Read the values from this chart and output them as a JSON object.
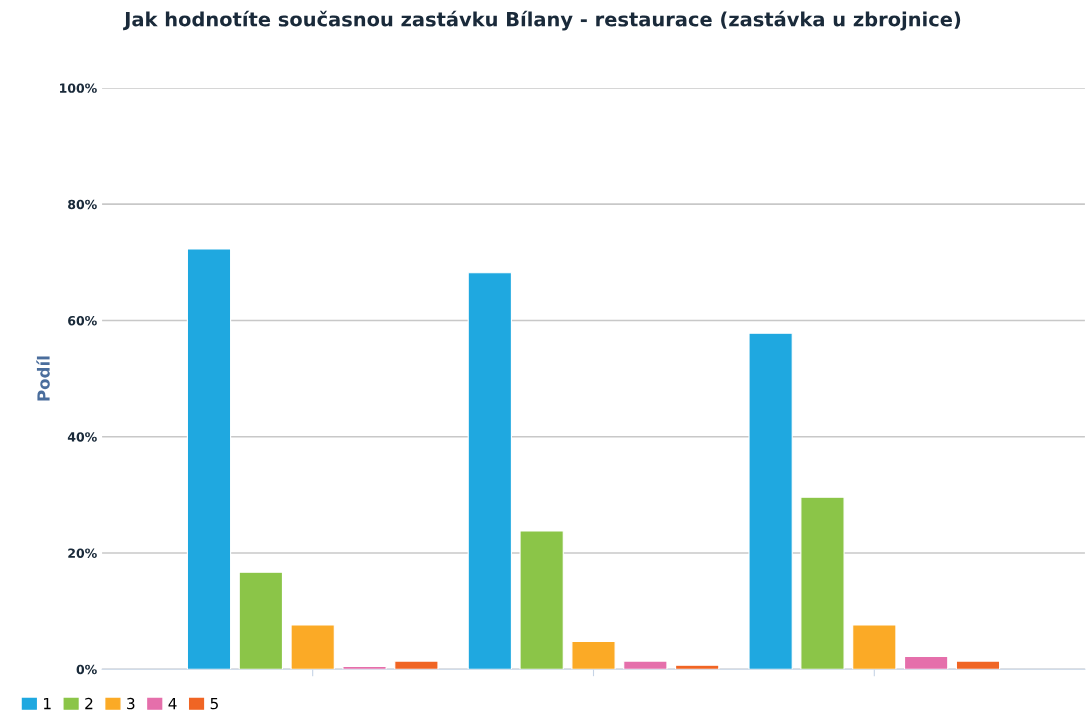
{
  "chart_data": {
    "type": "bar",
    "title": "Jak hodnotíte současnou zastávku Bílany - restaurace (zastávka u zbrojnice)",
    "ylabel": "Podíl",
    "categories": [
      null,
      null,
      null
    ],
    "series": [
      {
        "name": "1",
        "color": "#1fa8e0",
        "values": [
          72.3,
          68.2,
          57.8
        ]
      },
      {
        "name": "2",
        "color": "#8bc548",
        "values": [
          16.7,
          23.8,
          29.6
        ]
      },
      {
        "name": "3",
        "color": "#fbaa26",
        "values": [
          7.6,
          4.8,
          7.6
        ]
      },
      {
        "name": "4",
        "color": "#e56fab",
        "values": [
          0.5,
          1.4,
          2.2
        ]
      },
      {
        "name": "5",
        "color": "#f06524",
        "values": [
          1.4,
          0.7,
          1.4
        ]
      }
    ],
    "ylim": [
      0,
      100
    ],
    "yticks": [
      {
        "value": 0,
        "label": "0%"
      },
      {
        "value": 20,
        "label": "20%"
      },
      {
        "value": 40,
        "label": "40%"
      },
      {
        "value": 60,
        "label": "60%"
      },
      {
        "value": 80,
        "label": "80%"
      },
      {
        "value": 100,
        "label": "100%"
      }
    ],
    "grid": "y",
    "legend": "bottom left"
  }
}
